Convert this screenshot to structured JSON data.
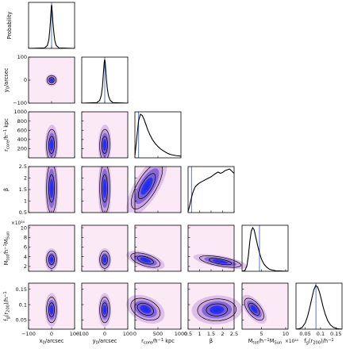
{
  "chart_data": {
    "type": "corner",
    "parameters": [
      {
        "id": "x0",
        "xlabel": "x₀/arcsec",
        "ylabel": "",
        "range": [
          -100,
          100
        ],
        "ticks": [
          -100,
          0,
          100
        ],
        "tick_labels": [
          "−100",
          "0",
          "100"
        ],
        "x_tick_labels": [
          "−100",
          "0",
          "100"
        ],
        "marker": 0,
        "pdf": {
          "x": [
            -100,
            -30,
            -18,
            -12,
            -8,
            -5,
            -3,
            -1,
            0,
            1,
            3,
            6,
            10,
            14,
            20,
            32,
            100
          ],
          "y": [
            0,
            0.01,
            0.07,
            0.2,
            0.4,
            0.62,
            0.8,
            0.96,
            1.0,
            0.96,
            0.82,
            0.58,
            0.35,
            0.18,
            0.07,
            0.01,
            0
          ]
        }
      },
      {
        "id": "y0",
        "xlabel": "y₀/arcsec",
        "ylabel": "y₀/arcsec",
        "range": [
          -100,
          100
        ],
        "ticks": [
          -100,
          0,
          100
        ],
        "tick_labels": [
          "−100",
          "0",
          "100"
        ],
        "x_tick_labels": [
          "−100",
          "0",
          "100"
        ],
        "marker": 0,
        "pdf": {
          "x": [
            -100,
            -35,
            -22,
            -15,
            -10,
            -7,
            -4,
            -2,
            0,
            2,
            4,
            7,
            11,
            16,
            24,
            36,
            100
          ],
          "y": [
            0,
            0.01,
            0.06,
            0.18,
            0.38,
            0.6,
            0.82,
            0.95,
            1.0,
            0.93,
            0.78,
            0.56,
            0.34,
            0.17,
            0.06,
            0.01,
            0
          ]
        }
      },
      {
        "id": "rcore",
        "xlabel": "r_core/h⁻¹ kpc",
        "ylabel": "r_core/h⁻¹ kpc",
        "range": [
          0,
          1000
        ],
        "ticks": [
          200,
          400,
          600,
          800,
          1000
        ],
        "tick_labels": [
          "200",
          "400",
          "600",
          "800",
          "1000"
        ],
        "x_ticks": [
          0,
          500,
          1000
        ],
        "x_tick_labels": [
          "0",
          "500",
          "1000"
        ],
        "marker": 80,
        "pdf": {
          "x": [
            0,
            40,
            80,
            120,
            160,
            200,
            240,
            280,
            330,
            380,
            440,
            500,
            560,
            620,
            680,
            740,
            800,
            900,
            1000
          ],
          "y": [
            0.05,
            0.45,
            0.85,
            1.0,
            0.97,
            0.88,
            0.76,
            0.64,
            0.52,
            0.42,
            0.33,
            0.26,
            0.2,
            0.16,
            0.12,
            0.09,
            0.07,
            0.05,
            0.04
          ]
        }
      },
      {
        "id": "beta",
        "xlabel": "β",
        "ylabel": "β",
        "range": [
          0.5,
          2.5
        ],
        "ticks": [
          0.5,
          1,
          1.5,
          2,
          2.5
        ],
        "tick_labels": [
          "0.5",
          "1",
          "1.5",
          "2",
          "2.5"
        ],
        "x_ticks": [
          0.5,
          1,
          1.5,
          2,
          2.5
        ],
        "x_tick_labels": [
          "0.5",
          "1",
          "1.5",
          "2",
          "2.5"
        ],
        "marker": 0.65,
        "pdf": {
          "x": [
            0.5,
            0.55,
            0.62,
            0.7,
            0.8,
            0.9,
            1.0,
            1.1,
            1.2,
            1.35,
            1.5,
            1.65,
            1.8,
            1.9,
            2.0,
            2.1,
            2.2,
            2.3,
            2.4,
            2.5
          ],
          "y": [
            0.02,
            0.12,
            0.28,
            0.45,
            0.58,
            0.64,
            0.68,
            0.71,
            0.74,
            0.78,
            0.82,
            0.88,
            0.93,
            0.9,
            0.92,
            0.96,
            0.98,
            1.0,
            0.95,
            0.9
          ]
        }
      },
      {
        "id": "Mtot",
        "xlabel": "M_tot/h⁻¹ M_Sun",
        "ylabel": "M_tot/h⁻¹ M_Sun",
        "offset_label": "×10¹⁴",
        "range": [
          1,
          10.5
        ],
        "ticks": [
          2,
          4,
          6,
          8,
          10
        ],
        "tick_labels": [
          "2",
          "4",
          "6",
          "8",
          "10"
        ],
        "x_ticks": [
          5,
          10
        ],
        "x_tick_labels": [
          "5",
          "10"
        ],
        "x_offset_label": "×10¹⁴",
        "marker": 4.6,
        "pdf": {
          "x": [
            1,
            1.6,
            2.0,
            2.3,
            2.6,
            2.9,
            3.2,
            3.5,
            3.8,
            4.2,
            4.6,
            5.0,
            5.5,
            6.0,
            6.6,
            7.2,
            8.0,
            9.0,
            10.5
          ],
          "y": [
            0,
            0.02,
            0.12,
            0.35,
            0.68,
            0.92,
            1.0,
            0.95,
            0.8,
            0.6,
            0.42,
            0.28,
            0.17,
            0.1,
            0.05,
            0.03,
            0.01,
            0.005,
            0
          ]
        }
      },
      {
        "id": "fg",
        "xlabel": "f_g(r_200)/h⁻¹",
        "ylabel": "f_g(r_200)/h⁻¹",
        "range": [
          0.02,
          0.17
        ],
        "ticks": [
          0.05,
          0.1,
          0.15
        ],
        "tick_labels": [
          "0.05",
          "0.1",
          "0.15"
        ],
        "x_ticks": [
          0.05,
          0.1,
          0.15
        ],
        "x_tick_labels": [
          "0.05",
          "0.1",
          "0.15"
        ],
        "marker": 0.085,
        "pdf": {
          "x": [
            0.02,
            0.03,
            0.04,
            0.05,
            0.058,
            0.065,
            0.072,
            0.078,
            0.084,
            0.09,
            0.096,
            0.102,
            0.108,
            0.115,
            0.123,
            0.132,
            0.142,
            0.155,
            0.17
          ],
          "y": [
            0,
            0.01,
            0.04,
            0.14,
            0.3,
            0.5,
            0.72,
            0.9,
            1.0,
            0.97,
            0.86,
            0.7,
            0.52,
            0.35,
            0.2,
            0.1,
            0.04,
            0.01,
            0
          ]
        }
      }
    ],
    "diagonal_ylabel": "Probability",
    "joint": [
      {
        "row": 1,
        "col": 0,
        "cx": 0,
        "cy": 0,
        "sx": 10,
        "sy": 10,
        "rho": 0
      },
      {
        "row": 2,
        "col": 0,
        "cx": 0,
        "cy": 280,
        "sx": 11,
        "sy": 170,
        "rho": 0.05
      },
      {
        "row": 2,
        "col": 1,
        "cx": 0,
        "cy": 280,
        "sx": 11,
        "sy": 170,
        "rho": 0.05
      },
      {
        "row": 3,
        "col": 0,
        "cx": 0,
        "cy": 1.55,
        "sx": 11,
        "sy": 0.55,
        "rho": 0
      },
      {
        "row": 3,
        "col": 1,
        "cx": 0,
        "cy": 1.55,
        "sx": 11,
        "sy": 0.55,
        "rho": 0
      },
      {
        "row": 3,
        "col": 2,
        "cx": 260,
        "cy": 1.65,
        "sx": 170,
        "sy": 0.5,
        "rho": 0.72
      },
      {
        "row": 4,
        "col": 0,
        "cx": 0,
        "cy": 3.4,
        "sx": 11,
        "sy": 0.9,
        "rho": 0
      },
      {
        "row": 4,
        "col": 1,
        "cx": 0,
        "cy": 3.4,
        "sx": 11,
        "sy": 0.9,
        "rho": 0
      },
      {
        "row": 4,
        "col": 2,
        "cx": 230,
        "cy": 3.3,
        "sx": 160,
        "sy": 0.75,
        "rho": -0.55
      },
      {
        "row": 4,
        "col": 3,
        "cx": 1.9,
        "cy": 3.0,
        "sx": 0.45,
        "sy": 0.6,
        "rho": -0.62
      },
      {
        "row": 5,
        "col": 0,
        "cx": 0,
        "cy": 0.083,
        "sx": 11,
        "sy": 0.021,
        "rho": 0
      },
      {
        "row": 5,
        "col": 1,
        "cx": 0,
        "cy": 0.083,
        "sx": 11,
        "sy": 0.021,
        "rho": 0
      },
      {
        "row": 5,
        "col": 2,
        "cx": 230,
        "cy": 0.085,
        "sx": 160,
        "sy": 0.018,
        "rho": -0.35
      },
      {
        "row": 5,
        "col": 3,
        "cx": 1.75,
        "cy": 0.083,
        "sx": 0.42,
        "sy": 0.018,
        "rho": 0.05
      },
      {
        "row": 5,
        "col": 4,
        "cx": 3.5,
        "cy": 0.085,
        "sx": 1.0,
        "sy": 0.018,
        "rho": -0.62
      }
    ],
    "colors": {
      "inner_fill": "#1f2cf0",
      "mid_fill": "#7a5fd6",
      "outer_fill": "#c9a4de",
      "background_fill": "#fbe9f5",
      "pdf_line": "#000000",
      "marker_line": "#5b79c8"
    }
  }
}
